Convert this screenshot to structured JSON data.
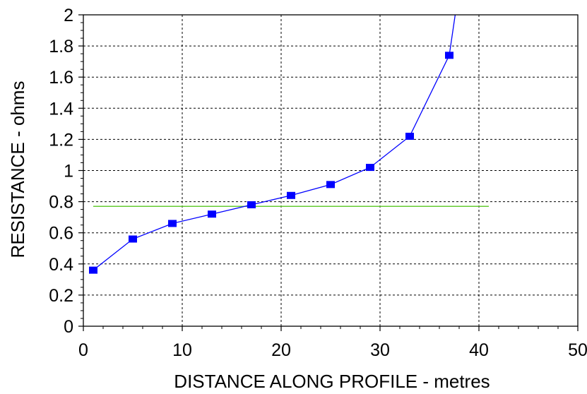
{
  "chart_data": {
    "type": "line",
    "title": "",
    "xlabel": "DISTANCE ALONG PROFILE - metres",
    "ylabel": "RESISTANCE - ohms",
    "xlim": [
      0,
      50
    ],
    "ylim": [
      0,
      2
    ],
    "x_ticks": [
      0,
      10,
      20,
      30,
      40,
      50
    ],
    "y_ticks": [
      0,
      0.2,
      0.4,
      0.6,
      0.8,
      1,
      1.2,
      1.4,
      1.6,
      1.8,
      2
    ],
    "x_tick_labels": [
      "0",
      "10",
      "20",
      "30",
      "40",
      "50"
    ],
    "y_tick_labels": [
      "0",
      "0.2",
      "0.4",
      "0.6",
      "0.8",
      "1",
      "1.2",
      "1.4",
      "1.6",
      "1.8",
      "2"
    ],
    "grid": true,
    "series": [
      {
        "x": [
          1,
          5,
          9,
          13,
          17,
          21,
          25,
          29,
          33,
          37
        ],
        "y": [
          0.36,
          0.56,
          0.66,
          0.72,
          0.78,
          0.84,
          0.91,
          1.02,
          1.22,
          1.74
        ],
        "color": "#0000ff",
        "marker": "square",
        "curve_extends_to": {
          "x": 37.6,
          "y": 2.0
        }
      }
    ],
    "reference_line": {
      "y": 0.77,
      "x_range": [
        1,
        41
      ],
      "color": "#66cc33"
    }
  }
}
